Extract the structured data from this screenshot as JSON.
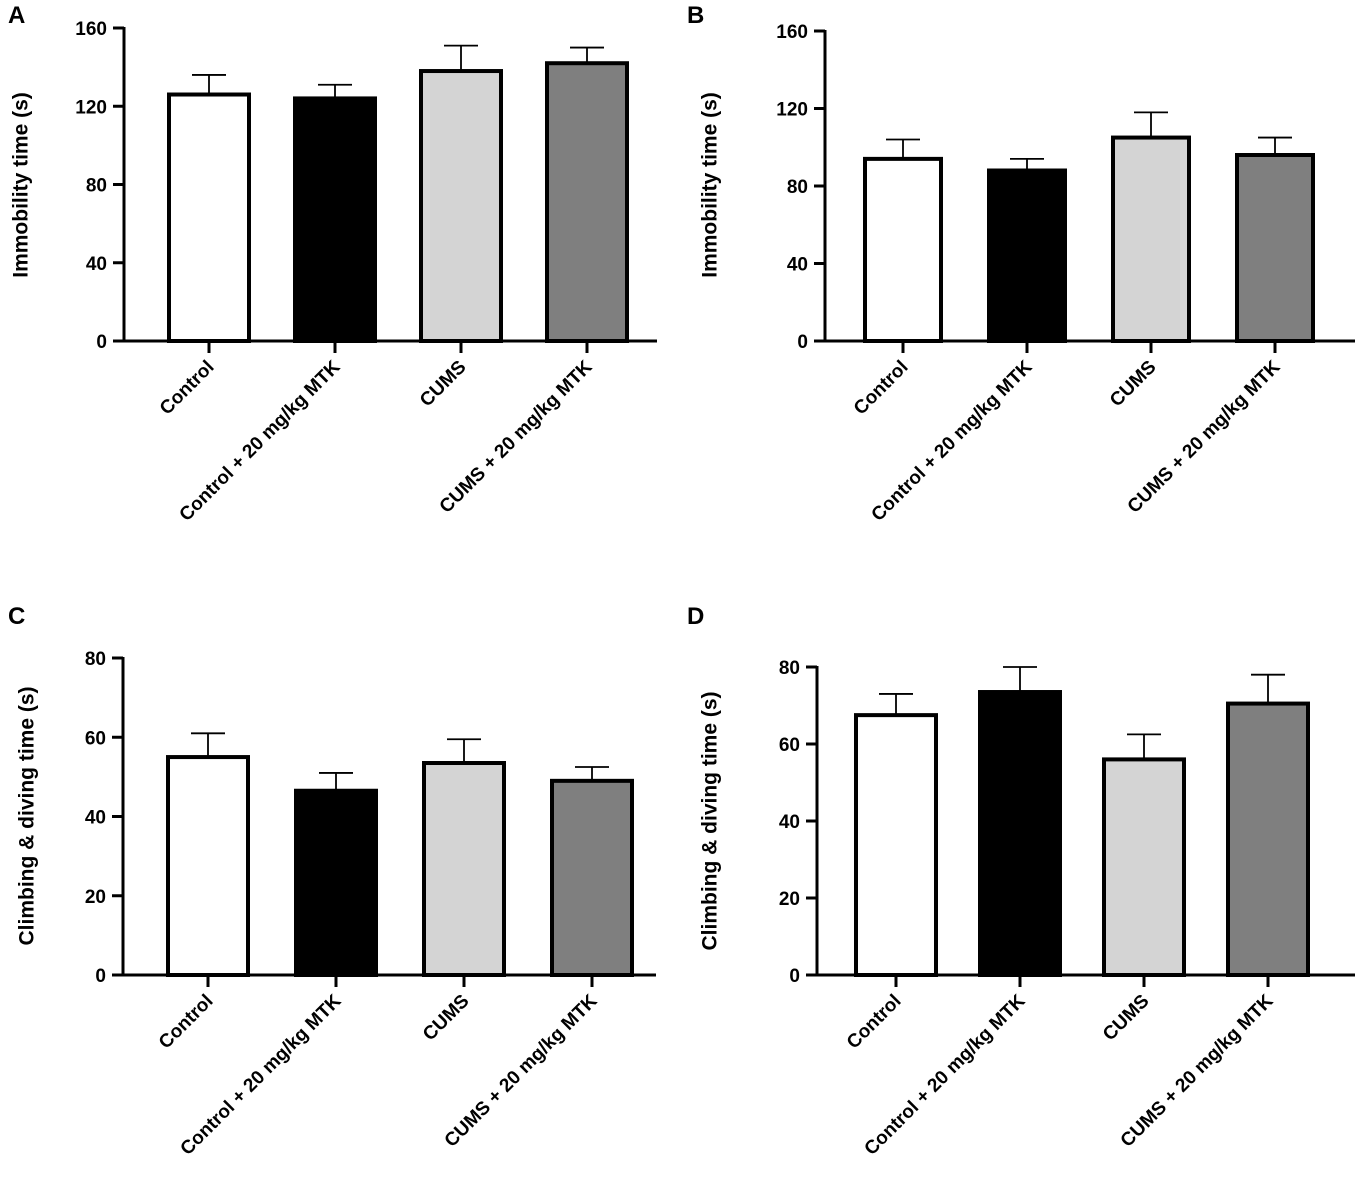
{
  "chart_data": [
    {
      "panel": "A",
      "type": "bar",
      "title": "",
      "xlabel": "",
      "ylabel": "Immobility time (s)",
      "categories": [
        "Control",
        "Control + 20 mg/kg MTK",
        "CUMS",
        "CUMS + 20 mg/kg MTK"
      ],
      "values": [
        126,
        124,
        138,
        142
      ],
      "errors": [
        10,
        7,
        13,
        8
      ],
      "colors": [
        "#ffffff",
        "#000000",
        "#d4d4d4",
        "#7f7f7f"
      ],
      "ylim": [
        0,
        160
      ],
      "yticks": [
        0,
        40,
        80,
        120,
        160
      ],
      "grid": false
    },
    {
      "panel": "B",
      "type": "bar",
      "title": "",
      "xlabel": "",
      "ylabel": "Immobility time (s)",
      "categories": [
        "Control",
        "Control + 20 mg/kg MTK",
        "CUMS",
        "CUMS + 20 mg/kg MTK"
      ],
      "values": [
        94,
        88,
        105,
        96
      ],
      "errors": [
        10,
        6,
        13,
        9
      ],
      "colors": [
        "#ffffff",
        "#000000",
        "#d4d4d4",
        "#7f7f7f"
      ],
      "ylim": [
        0,
        160
      ],
      "yticks": [
        0,
        40,
        80,
        120,
        160
      ],
      "grid": false
    },
    {
      "panel": "C",
      "type": "bar",
      "title": "",
      "xlabel": "",
      "ylabel": "Climbing & diving time (s)",
      "categories": [
        "Control",
        "Control + 20 mg/kg MTK",
        "CUMS",
        "CUMS + 20 mg/kg MTK"
      ],
      "values": [
        55,
        46.5,
        53.5,
        49
      ],
      "errors": [
        6,
        4.5,
        6,
        3.5
      ],
      "colors": [
        "#ffffff",
        "#000000",
        "#d4d4d4",
        "#7f7f7f"
      ],
      "ylim": [
        0,
        80
      ],
      "yticks": [
        0,
        20,
        40,
        60,
        80
      ],
      "grid": false
    },
    {
      "panel": "D",
      "type": "bar",
      "title": "",
      "xlabel": "",
      "ylabel": "Climbing & diving time (s)",
      "categories": [
        "Control",
        "Control + 20 mg/kg MTK",
        "CUMS",
        "CUMS + 20 mg/kg MTK"
      ],
      "values": [
        67.5,
        73.5,
        56,
        70.5
      ],
      "errors": [
        5.5,
        6.5,
        6.5,
        7.5
      ],
      "colors": [
        "#ffffff",
        "#000000",
        "#d4d4d4",
        "#7f7f7f"
      ],
      "ylim": [
        0,
        80
      ],
      "yticks": [
        0,
        20,
        40,
        60,
        80
      ],
      "grid": false
    }
  ]
}
